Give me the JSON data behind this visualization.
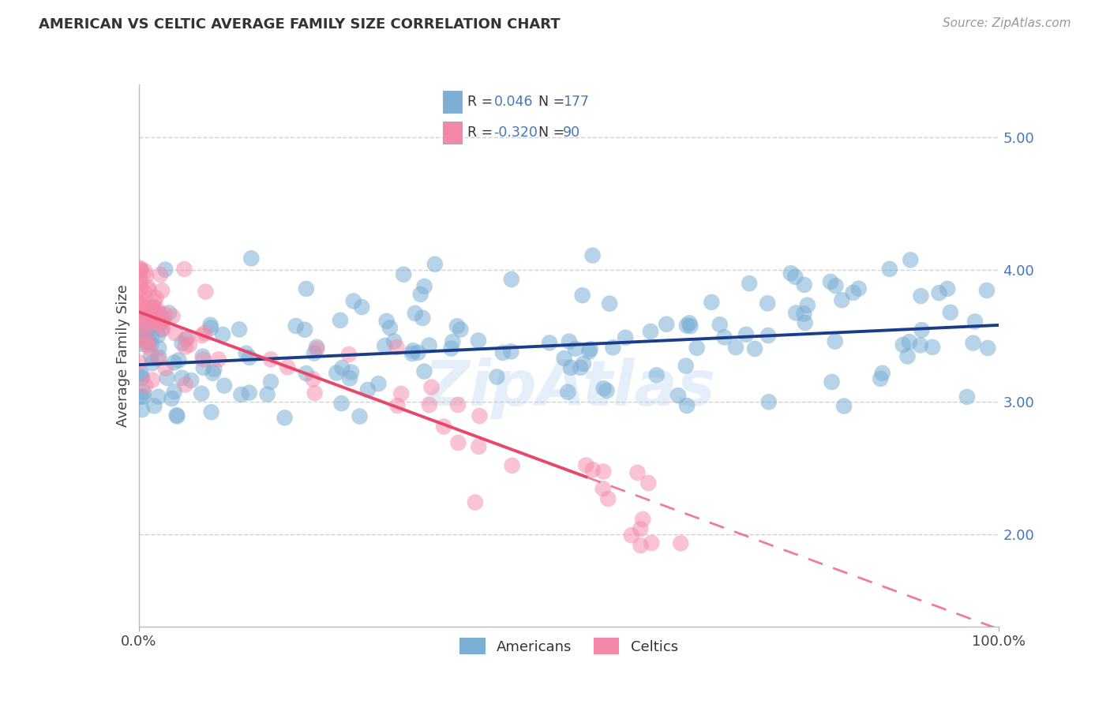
{
  "title": "AMERICAN VS CELTIC AVERAGE FAMILY SIZE CORRELATION CHART",
  "source": "Source: ZipAtlas.com",
  "ylabel": "Average Family Size",
  "xlim": [
    0,
    100
  ],
  "ylim": [
    1.3,
    5.4
  ],
  "yticks": [
    2.0,
    3.0,
    4.0,
    5.0
  ],
  "blue_R": 0.046,
  "blue_N": 177,
  "pink_R": -0.32,
  "pink_N": 90,
  "blue_color": "#7BAFD4",
  "pink_color": "#F588A8",
  "blue_line_color": "#1A3D8A",
  "pink_line_color": "#E8476A",
  "legend_label_american": "Americans",
  "legend_label_celtic": "Celtics",
  "blue_intercept": 3.28,
  "blue_slope": 0.003,
  "pink_intercept": 3.68,
  "pink_slope": -0.024,
  "pink_solid_end": 52,
  "seed": 42
}
